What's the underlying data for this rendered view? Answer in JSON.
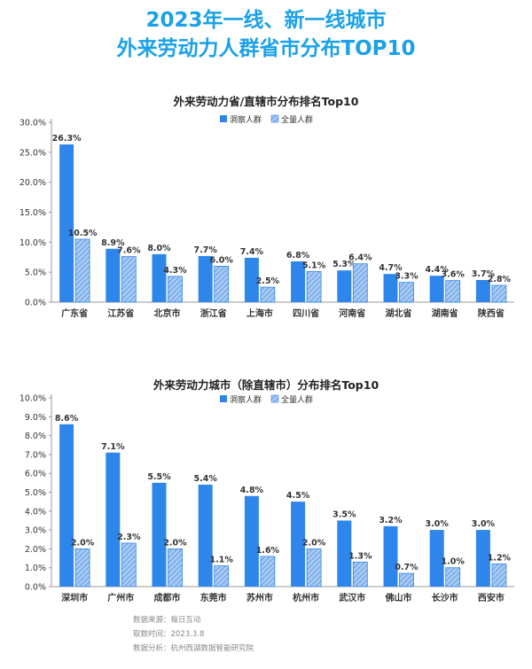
{
  "header": {
    "title_line1": "2023年一线、新一线城市",
    "title_line2": "外来劳动力人群省市分布TOP10"
  },
  "colors": {
    "title": "#1aa1e8",
    "observed": "#2f86ea",
    "full": "#a9c9f0",
    "full_hatch": "#2f86ea",
    "axis_text": "#333333",
    "grid": "#d0d0d0"
  },
  "legend_labels": {
    "observed": "洞察人群",
    "full": "全量人群"
  },
  "chart_data": [
    {
      "type": "bar",
      "title": "外来劳动力省/直辖市分布排名Top10",
      "categories": [
        "广东省",
        "江苏省",
        "北京市",
        "浙江省",
        "上海市",
        "四川省",
        "河南省",
        "湖北省",
        "湖南省",
        "陕西省"
      ],
      "series": [
        {
          "name": "洞察人群",
          "values": [
            26.3,
            8.9,
            8.0,
            7.7,
            7.4,
            6.8,
            5.3,
            4.7,
            4.4,
            3.7
          ],
          "labels": [
            "26.3%",
            "8.9%",
            "8.0%",
            "7.7%",
            "7.4%",
            "6.8%",
            "5.3%",
            "4.7%",
            "4.4%",
            "3.7%"
          ]
        },
        {
          "name": "全量人群",
          "values": [
            10.5,
            7.6,
            4.3,
            6.0,
            2.5,
            5.1,
            6.4,
            3.3,
            3.6,
            2.8
          ],
          "labels": [
            "10.5%",
            "7.6%",
            "4.3%",
            "6.0%",
            "2.5%",
            "5.1%",
            "6.4%",
            "3.3%",
            "3.6%",
            "2.8%"
          ]
        }
      ],
      "yticks": [
        "0.0%",
        "5.0%",
        "10.0%",
        "15.0%",
        "20.0%",
        "25.0%",
        "30.0%"
      ],
      "ylim": [
        0,
        30
      ],
      "grid": false,
      "legend": "top-center"
    },
    {
      "type": "bar",
      "title": "外来劳动力城市（除直辖市）分布排名Top10",
      "categories": [
        "深圳市",
        "广州市",
        "成都市",
        "东莞市",
        "苏州市",
        "杭州市",
        "武汉市",
        "佛山市",
        "长沙市",
        "西安市"
      ],
      "series": [
        {
          "name": "洞察人群",
          "values": [
            8.6,
            7.1,
            5.5,
            5.4,
            4.8,
            4.5,
            3.5,
            3.2,
            3.0,
            3.0
          ],
          "labels": [
            "8.6%",
            "7.1%",
            "5.5%",
            "5.4%",
            "4.8%",
            "4.5%",
            "3.5%",
            "3.2%",
            "3.0%",
            "3.0%"
          ]
        },
        {
          "name": "全量人群",
          "values": [
            2.0,
            2.3,
            2.0,
            1.1,
            1.6,
            2.0,
            1.3,
            0.7,
            1.0,
            1.2
          ],
          "labels": [
            "2.0%",
            "2.3%",
            "2.0%",
            "1.1%",
            "1.6%",
            "2.0%",
            "1.3%",
            "0.7%",
            "1.0%",
            "1.2%"
          ]
        }
      ],
      "yticks": [
        "0.0%",
        "1.0%",
        "2.0%",
        "3.0%",
        "4.0%",
        "5.0%",
        "6.0%",
        "7.0%",
        "8.0%",
        "9.0%",
        "10.0%"
      ],
      "ylim": [
        0,
        10
      ],
      "grid": false,
      "legend": "top-center"
    }
  ],
  "footer": {
    "source": "数据来源：每日互动",
    "time": "取数时间：2023.3.8",
    "analysis": "数据分析：杭州西湖数据智能研究院"
  }
}
